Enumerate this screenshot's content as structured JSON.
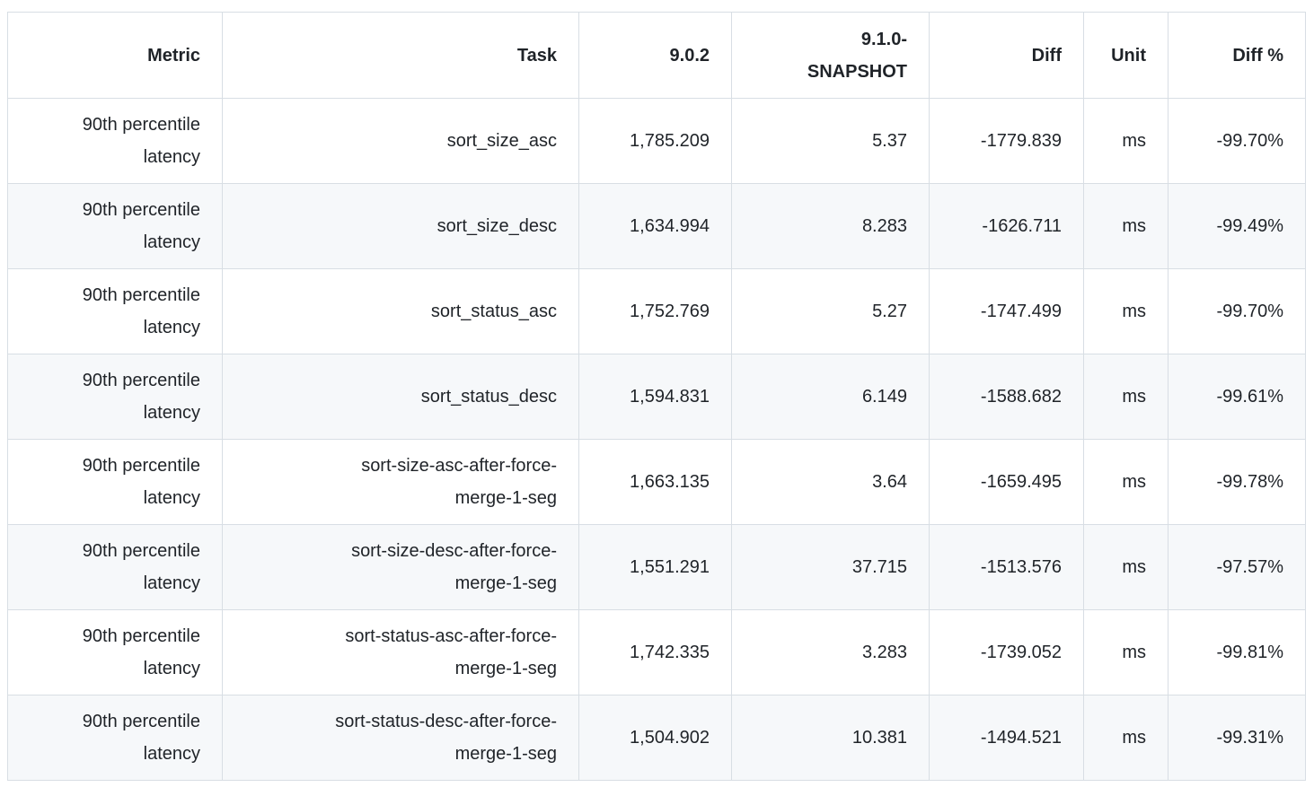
{
  "table": {
    "columns": [
      {
        "key": "metric",
        "label": "Metric"
      },
      {
        "key": "task",
        "label": "Task"
      },
      {
        "key": "baseline",
        "label": "9.0.2"
      },
      {
        "key": "contender",
        "label": "9.1.0-SNAPSHOT"
      },
      {
        "key": "diff",
        "label": "Diff"
      },
      {
        "key": "unit",
        "label": "Unit"
      },
      {
        "key": "diff_pct",
        "label": "Diff %"
      }
    ],
    "rows": [
      {
        "cells": [
          "90th percentile latency",
          "sort_size_asc",
          "1,785.209",
          "5.37",
          "-1779.839",
          "ms",
          "-99.70%"
        ]
      },
      {
        "cells": [
          "90th percentile latency",
          "sort_size_desc",
          "1,634.994",
          "8.283",
          "-1626.711",
          "ms",
          "-99.49%"
        ]
      },
      {
        "cells": [
          "90th percentile latency",
          "sort_status_asc",
          "1,752.769",
          "5.27",
          "-1747.499",
          "ms",
          "-99.70%"
        ]
      },
      {
        "cells": [
          "90th percentile latency",
          "sort_status_desc",
          "1,594.831",
          "6.149",
          "-1588.682",
          "ms",
          "-99.61%"
        ]
      },
      {
        "cells": [
          "90th percentile latency",
          "sort-size-asc-after-force-merge-1-seg",
          "1,663.135",
          "3.64",
          "-1659.495",
          "ms",
          "-99.78%"
        ]
      },
      {
        "cells": [
          "90th percentile latency",
          "sort-size-desc-after-force-merge-1-seg",
          "1,551.291",
          "37.715",
          "-1513.576",
          "ms",
          "-97.57%"
        ]
      },
      {
        "cells": [
          "90th percentile latency",
          "sort-status-asc-after-force-merge-1-seg",
          "1,742.335",
          "3.283",
          "-1739.052",
          "ms",
          "-99.81%"
        ]
      },
      {
        "cells": [
          "90th percentile latency",
          "sort-status-desc-after-force-merge-1-seg",
          "1,504.902",
          "10.381",
          "-1494.521",
          "ms",
          "-99.31%"
        ]
      }
    ],
    "colors": {
      "background": "#ffffff",
      "stripe": "#f6f8fa",
      "border": "#d8dee4",
      "text": "#1f2328"
    }
  }
}
